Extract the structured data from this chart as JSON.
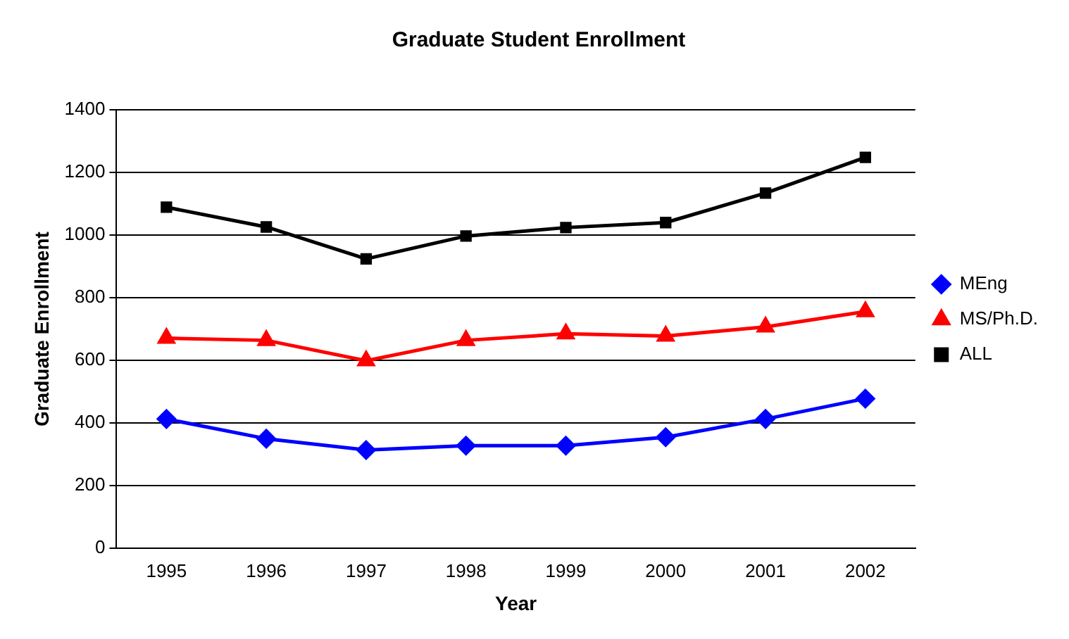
{
  "chart_data": {
    "type": "line",
    "title": "Graduate Student Enrollment",
    "xlabel": "Year",
    "ylabel": "Graduate Enrollment",
    "categories": [
      "1995",
      "1996",
      "1997",
      "1998",
      "1999",
      "2000",
      "2001",
      "2002"
    ],
    "series": [
      {
        "name": "MEng",
        "color": "#0000ff",
        "marker": "diamond",
        "values": [
          413,
          350,
          314,
          328,
          328,
          355,
          413,
          478
        ]
      },
      {
        "name": "MS/Ph.D.",
        "color": "#ff0000",
        "marker": "triangle",
        "values": [
          671,
          664,
          599,
          664,
          685,
          678,
          707,
          756
        ]
      },
      {
        "name": "ALL",
        "color": "#000000",
        "marker": "square",
        "values": [
          1089,
          1026,
          924,
          997,
          1024,
          1040,
          1134,
          1248
        ]
      }
    ],
    "ylim": [
      0,
      1400
    ],
    "yticks": [
      0,
      200,
      400,
      600,
      800,
      1000,
      1200,
      1400
    ],
    "grid": "y",
    "legend": "right",
    "line_style": "solid"
  }
}
